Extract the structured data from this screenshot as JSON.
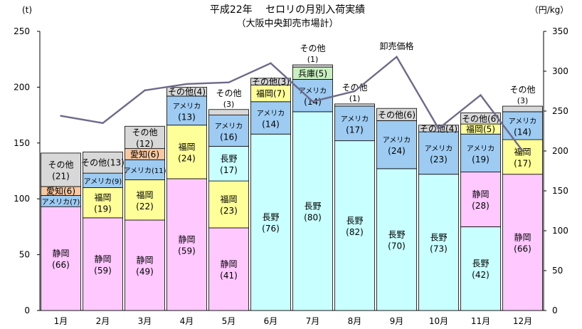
{
  "chart_data": {
    "type": "bar",
    "title": "平成22年　 セロリの月別入荷実績",
    "subtitle": "（大阪中央卸売市場計）",
    "y_unit_left": "(t)",
    "y_unit_right": "（円/kg）",
    "ylim_left": [
      0,
      250
    ],
    "ylim_right": [
      0,
      350
    ],
    "yticks_left": [
      "0",
      "50",
      "100",
      "150",
      "200",
      "250"
    ],
    "yticks_right": [
      "0",
      "50",
      "100",
      "150",
      "200",
      "250",
      "300",
      "350"
    ],
    "categories": [
      "1月",
      "2月",
      "3月",
      "4月",
      "5月",
      "6月",
      "7月",
      "8月",
      "9月",
      "10月",
      "11月",
      "12月"
    ],
    "stack_order": [
      "静岡",
      "長野",
      "アメリカ",
      "福岡",
      "愛知",
      "兵庫",
      "その他"
    ],
    "colors": {
      "静岡": "#ffc8ff",
      "長野": "#c8ffff",
      "アメリカ": "#9dcbf2",
      "福岡": "#ffff99",
      "愛知": "#fac8a0",
      "兵庫": "#c8f0c0",
      "その他": "#d8d8d8",
      "price_line": "#6e6a8a"
    },
    "bars": [
      {
        "month": "1月",
        "segments": [
          {
            "name": "静岡",
            "value": 93,
            "label": "(66)"
          },
          {
            "name": "アメリカ",
            "value": 10,
            "label": "(7)"
          },
          {
            "name": "愛知",
            "value": 8,
            "label": "(6)"
          },
          {
            "name": "その他",
            "value": 30,
            "label": "(21)"
          }
        ]
      },
      {
        "month": "2月",
        "segments": [
          {
            "name": "静岡",
            "value": 83,
            "label": "(59)"
          },
          {
            "name": "福岡",
            "value": 27,
            "label": "(19)"
          },
          {
            "name": "アメリカ",
            "value": 13,
            "label": "(9)"
          },
          {
            "name": "その他",
            "value": 19,
            "label": "(13)"
          }
        ]
      },
      {
        "month": "3月",
        "segments": [
          {
            "name": "静岡",
            "value": 81,
            "label": "(49)"
          },
          {
            "name": "福岡",
            "value": 36,
            "label": "(22)"
          },
          {
            "name": "アメリカ",
            "value": 18,
            "label": "(11)"
          },
          {
            "name": "愛知",
            "value": 10,
            "label": "(6)"
          },
          {
            "name": "その他",
            "value": 20,
            "label": "(12)"
          }
        ]
      },
      {
        "month": "4月",
        "segments": [
          {
            "name": "静岡",
            "value": 118,
            "label": "(59)"
          },
          {
            "name": "福岡",
            "value": 48,
            "label": "(24)"
          },
          {
            "name": "アメリカ",
            "value": 26,
            "label": "(13)"
          },
          {
            "name": "その他",
            "value": 8,
            "label": "(4)"
          }
        ]
      },
      {
        "month": "5月",
        "segments": [
          {
            "name": "静岡",
            "value": 74,
            "label": "(41)"
          },
          {
            "name": "福岡",
            "value": 42,
            "label": "(23)"
          },
          {
            "name": "長野",
            "value": 31,
            "label": "(17)"
          },
          {
            "name": "アメリカ",
            "value": 28,
            "label": "(16)"
          },
          {
            "name": "その他",
            "value": 5,
            "label": "(3)"
          }
        ]
      },
      {
        "month": "6月",
        "segments": [
          {
            "name": "長野",
            "value": 158,
            "label": "(76)"
          },
          {
            "name": "アメリカ",
            "value": 29,
            "label": "(14)"
          },
          {
            "name": "福岡",
            "value": 15,
            "label": "(7)"
          },
          {
            "name": "その他",
            "value": 6,
            "label": "(3)"
          }
        ]
      },
      {
        "month": "7月",
        "segments": [
          {
            "name": "長野",
            "value": 178,
            "label": "(80)"
          },
          {
            "name": "アメリカ",
            "value": 29,
            "label": "(14)"
          },
          {
            "name": "兵庫",
            "value": 11,
            "label": "(5)"
          },
          {
            "name": "その他",
            "value": 2,
            "label": "(1)"
          }
        ]
      },
      {
        "month": "8月",
        "segments": [
          {
            "name": "長野",
            "value": 152,
            "label": "(82)"
          },
          {
            "name": "アメリカ",
            "value": 31,
            "label": "(17)"
          },
          {
            "name": "その他",
            "value": 2,
            "label": "(1)"
          }
        ]
      },
      {
        "month": "9月",
        "segments": [
          {
            "name": "長野",
            "value": 127,
            "label": "(70)"
          },
          {
            "name": "アメリカ",
            "value": 43,
            "label": "(24)"
          },
          {
            "name": "その他",
            "value": 11,
            "label": "(6)"
          }
        ]
      },
      {
        "month": "10月",
        "segments": [
          {
            "name": "長野",
            "value": 122,
            "label": "(73)"
          },
          {
            "name": "アメリカ",
            "value": 38,
            "label": "(23)"
          },
          {
            "name": "その他",
            "value": 6,
            "label": "(4)"
          }
        ]
      },
      {
        "month": "11月",
        "segments": [
          {
            "name": "長野",
            "value": 75,
            "label": "(42)"
          },
          {
            "name": "静岡",
            "value": 49,
            "label": "(28)"
          },
          {
            "name": "アメリカ",
            "value": 34,
            "label": "(19)"
          },
          {
            "name": "福岡",
            "value": 9,
            "label": "(5)"
          },
          {
            "name": "その他",
            "value": 10,
            "label": "(6)"
          }
        ]
      },
      {
        "month": "12月",
        "segments": [
          {
            "name": "静岡",
            "value": 122,
            "label": "(66)"
          },
          {
            "name": "福岡",
            "value": 31,
            "label": "(17)"
          },
          {
            "name": "アメリカ",
            "value": 25,
            "label": "(14)"
          },
          {
            "name": "その他",
            "value": 5,
            "label": "(3)"
          }
        ]
      }
    ],
    "price_series": {
      "name": "卸売価格",
      "values": [
        244,
        235,
        276,
        284,
        286,
        310,
        262,
        275,
        318,
        228,
        270,
        200
      ]
    }
  }
}
